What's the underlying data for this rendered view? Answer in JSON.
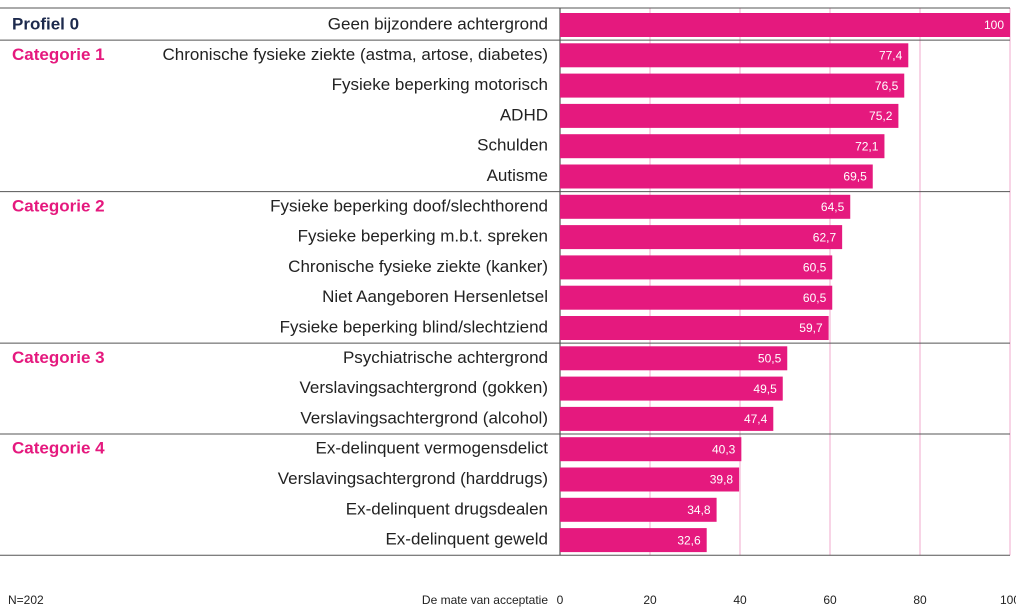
{
  "chart_data": {
    "type": "bar",
    "orientation": "horizontal",
    "categories": [
      "Geen bijzondere achtergrond",
      "Chronische fysieke ziekte (astma, artose, diabetes)",
      "Fysieke beperking motorisch",
      "ADHD",
      "Schulden",
      "Autisme",
      "Fysieke beperking doof/slechthorend",
      "Fysieke beperking m.b.t. spreken",
      "Chronische fysieke ziekte (kanker)",
      "Niet Aangeboren Hersenletsel",
      "Fysieke beperking blind/slechtziend",
      "Psychiatrische achtergrond",
      "Verslavingsachtergrond (gokken)",
      "Verslavingsachtergrond (alcohol)",
      "Ex-delinquent vermogensdelict",
      "Verslavingsachtergrond (harddrugs)",
      "Ex-delinquent drugsdealen",
      "Ex-delinquent geweld"
    ],
    "group_labels": [
      "Profiel 0",
      "Categorie 1",
      null,
      null,
      null,
      null,
      "Categorie 2",
      null,
      null,
      null,
      null,
      "Categorie 3",
      null,
      null,
      "Categorie 4",
      null,
      null,
      null
    ],
    "values": [
      100,
      77.4,
      76.5,
      75.2,
      72.1,
      69.5,
      64.5,
      62.7,
      60.5,
      60.5,
      59.7,
      50.5,
      49.5,
      47.4,
      40.3,
      39.8,
      34.8,
      32.6
    ],
    "value_labels": [
      "100",
      "77,4",
      "76,5",
      "75,2",
      "72,1",
      "69,5",
      "64,5",
      "62,7",
      "60,5",
      "60,5",
      "59,7",
      "50,5",
      "49,5",
      "47,4",
      "40,3",
      "39,8",
      "34,8",
      "32,6"
    ],
    "color": "#e5197e",
    "xlim": [
      0,
      100
    ],
    "xticks": [
      0,
      20,
      40,
      60,
      80,
      100
    ],
    "grid": true,
    "xlabel": "De mate van acceptatie",
    "note": "N=202"
  }
}
